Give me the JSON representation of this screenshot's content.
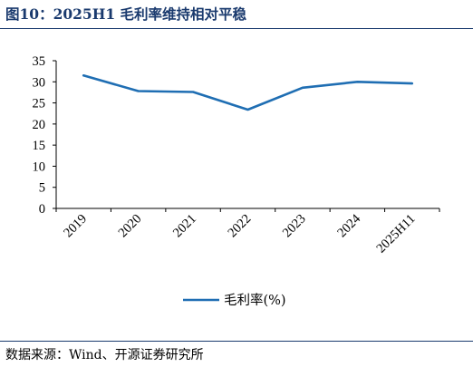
{
  "header": {
    "title": "图10：2025H1 毛利率维持相对平稳"
  },
  "footer": {
    "source": "数据来源：Wind、开源证券研究所"
  },
  "chart_data": {
    "type": "line",
    "categories": [
      "2019",
      "2020",
      "2021",
      "2022",
      "2023",
      "2024",
      "2025H11"
    ],
    "series": [
      {
        "name": "毛利率(%)",
        "values": [
          31.5,
          27.8,
          27.6,
          23.4,
          28.6,
          30.0,
          29.6
        ],
        "color": "#1f6eb3"
      }
    ],
    "ylim": [
      0,
      35
    ],
    "yticks": [
      0,
      5,
      10,
      15,
      20,
      25,
      30,
      35
    ],
    "grid": false,
    "legend": "bottom"
  }
}
